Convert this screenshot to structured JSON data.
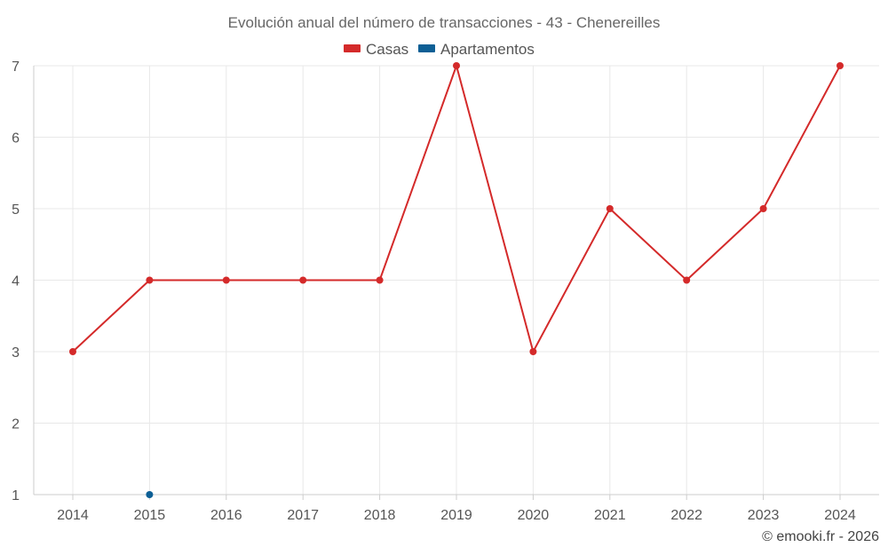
{
  "chart_data": {
    "type": "line",
    "title": "Evolución anual del número de transacciones - 43 - Chenereilles",
    "categories": [
      "2014",
      "2015",
      "2016",
      "2017",
      "2018",
      "2019",
      "2020",
      "2021",
      "2022",
      "2023",
      "2024"
    ],
    "series": [
      {
        "name": "Casas",
        "color": "#d42a2a",
        "values": [
          3,
          4,
          4,
          4,
          4,
          7,
          3,
          5,
          4,
          5,
          7
        ]
      },
      {
        "name": "Apartamentos",
        "color": "#0d5f95",
        "values": [
          null,
          1,
          null,
          null,
          null,
          null,
          null,
          null,
          null,
          null,
          null
        ]
      }
    ],
    "ylim": [
      1,
      7
    ],
    "yticks": [
      "1",
      "2",
      "3",
      "4",
      "5",
      "6",
      "7"
    ],
    "xlabel": "",
    "ylabel": "",
    "grid": true,
    "legend_position": "top-center"
  },
  "credit": "© emooki.fr - 2026"
}
